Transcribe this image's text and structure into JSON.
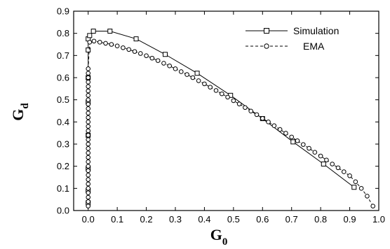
{
  "chart_data": {
    "type": "line",
    "title": "",
    "xlabel": "G",
    "xlabel_sub": "0",
    "ylabel": "G",
    "ylabel_sub": "d",
    "xlim": [
      -0.05,
      1.0
    ],
    "ylim": [
      0.0,
      0.9
    ],
    "xticks": [
      "0.0",
      "0.1",
      "0.2",
      "0.3",
      "0.4",
      "0.5",
      "0.6",
      "0.7",
      "0.8",
      "0.9",
      "1.0"
    ],
    "yticks": [
      "0.0",
      "0.1",
      "0.2",
      "0.3",
      "0.4",
      "0.5",
      "0.6",
      "0.7",
      "0.8",
      "0.9"
    ],
    "grid": false,
    "legend_position": "top-right",
    "series": [
      {
        "name": "Simulation",
        "marker": "square",
        "color": "#000000",
        "line_style": "solid",
        "x": [
          0.0,
          0.0,
          0.0,
          0.0,
          0.0,
          0.0,
          0.0,
          0.0,
          0.005,
          0.018,
          0.075,
          0.165,
          0.265,
          0.375,
          0.49,
          0.6,
          0.705,
          0.81,
          0.915
        ],
        "y": [
          0.035,
          0.09,
          0.19,
          0.34,
          0.49,
          0.6,
          0.725,
          0.775,
          0.79,
          0.81,
          0.81,
          0.775,
          0.705,
          0.62,
          0.52,
          0.415,
          0.31,
          0.21,
          0.105
        ]
      },
      {
        "name": "EMA",
        "marker": "circle",
        "color": "#000000",
        "line_style": "dashed",
        "x": [
          0.0,
          0.0,
          0.0,
          0.0,
          0.0,
          0.0,
          0.0,
          0.0,
          0.0,
          0.0,
          0.0,
          0.0,
          0.0,
          0.0,
          0.0,
          0.0,
          0.0,
          0.0,
          0.0,
          0.0,
          0.0,
          0.0,
          0.0,
          0.0,
          0.0,
          0.0,
          0.0,
          0.0,
          0.0,
          0.0,
          0.0,
          0.0,
          0.005,
          0.02,
          0.04,
          0.06,
          0.08,
          0.1,
          0.12,
          0.14,
          0.16,
          0.18,
          0.2,
          0.22,
          0.24,
          0.26,
          0.28,
          0.3,
          0.32,
          0.34,
          0.36,
          0.38,
          0.4,
          0.42,
          0.44,
          0.46,
          0.48,
          0.5,
          0.52,
          0.54,
          0.56,
          0.58,
          0.6,
          0.62,
          0.64,
          0.66,
          0.68,
          0.7,
          0.72,
          0.74,
          0.76,
          0.78,
          0.8,
          0.82,
          0.84,
          0.86,
          0.88,
          0.9,
          0.92,
          0.94,
          0.96,
          0.98
        ],
        "y": [
          0.02,
          0.04,
          0.06,
          0.08,
          0.1,
          0.12,
          0.14,
          0.16,
          0.18,
          0.2,
          0.22,
          0.24,
          0.26,
          0.28,
          0.3,
          0.32,
          0.34,
          0.36,
          0.38,
          0.4,
          0.42,
          0.44,
          0.46,
          0.48,
          0.5,
          0.52,
          0.54,
          0.56,
          0.58,
          0.6,
          0.62,
          0.64,
          0.76,
          0.765,
          0.76,
          0.755,
          0.75,
          0.743,
          0.735,
          0.727,
          0.718,
          0.709,
          0.699,
          0.688,
          0.677,
          0.665,
          0.653,
          0.64,
          0.627,
          0.614,
          0.6,
          0.586,
          0.572,
          0.557,
          0.542,
          0.527,
          0.512,
          0.496,
          0.481,
          0.465,
          0.449,
          0.433,
          0.416,
          0.4,
          0.383,
          0.366,
          0.349,
          0.332,
          0.315,
          0.298,
          0.281,
          0.263,
          0.246,
          0.228,
          0.21,
          0.193,
          0.175,
          0.157,
          0.13,
          0.1,
          0.065,
          0.02
        ]
      }
    ]
  }
}
